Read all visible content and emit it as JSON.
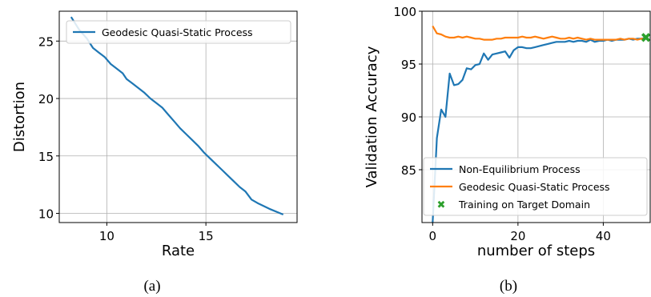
{
  "chart_data": [
    {
      "type": "line",
      "caption": "(a)",
      "xlabel": "Rate",
      "ylabel": "Distortion",
      "xlim": [
        7.6,
        19.6
      ],
      "ylim": [
        9.2,
        27.6
      ],
      "xticks": [
        10,
        15
      ],
      "yticks": [
        10,
        15,
        20,
        25
      ],
      "grid": true,
      "legend_position": "upper-right",
      "series": [
        {
          "name": "Geodesic Quasi-Static Process",
          "color": "#1f77b4",
          "x": [
            8.2,
            8.6,
            9.0,
            9.3,
            9.6,
            9.9,
            10.2,
            10.5,
            10.8,
            11.0,
            11.3,
            11.6,
            11.9,
            12.2,
            12.5,
            12.8,
            13.1,
            13.4,
            13.7,
            14.0,
            14.3,
            14.6,
            14.9,
            15.2,
            15.5,
            15.8,
            16.1,
            16.4,
            16.7,
            17.0,
            17.3,
            17.6,
            18.2,
            18.9
          ],
          "y": [
            27.1,
            26.0,
            25.2,
            24.4,
            24.0,
            23.6,
            23.0,
            22.6,
            22.2,
            21.7,
            21.3,
            20.9,
            20.5,
            20.0,
            19.6,
            19.2,
            18.6,
            18.0,
            17.4,
            16.9,
            16.4,
            15.9,
            15.3,
            14.8,
            14.3,
            13.8,
            13.3,
            12.8,
            12.3,
            11.9,
            11.2,
            10.9,
            10.4,
            9.9
          ]
        }
      ]
    },
    {
      "type": "line",
      "caption": "(b)",
      "xlabel": "number of steps",
      "ylabel": "Validation Accuracy",
      "xlim": [
        -2.5,
        51
      ],
      "ylim": [
        80,
        100
      ],
      "xticks": [
        0,
        20,
        40
      ],
      "yticks": [
        85,
        90,
        95,
        100
      ],
      "grid": true,
      "legend_position": "lower-right",
      "series": [
        {
          "name": "Non-Equilibrium Process",
          "color": "#1f77b4",
          "x": [
            0,
            1,
            2,
            3,
            4,
            5,
            6,
            7,
            8,
            9,
            10,
            11,
            12,
            13,
            14,
            15,
            16,
            17,
            18,
            19,
            20,
            21,
            22,
            23,
            24,
            25,
            26,
            27,
            28,
            29,
            30,
            31,
            32,
            33,
            34,
            35,
            36,
            37,
            38,
            39,
            40,
            41,
            42,
            43,
            44,
            45,
            46,
            47,
            48,
            49,
            50
          ],
          "y": [
            80.0,
            88.0,
            90.7,
            90.0,
            94.1,
            93.0,
            93.1,
            93.5,
            94.6,
            94.5,
            94.9,
            95.0,
            96.0,
            95.4,
            95.9,
            96.0,
            96.1,
            96.2,
            95.6,
            96.3,
            96.6,
            96.6,
            96.5,
            96.5,
            96.6,
            96.7,
            96.8,
            96.9,
            97.0,
            97.1,
            97.1,
            97.1,
            97.2,
            97.1,
            97.2,
            97.2,
            97.1,
            97.3,
            97.1,
            97.2,
            97.2,
            97.3,
            97.2,
            97.3,
            97.3,
            97.3,
            97.4,
            97.3,
            97.4,
            97.4,
            97.5
          ]
        },
        {
          "name": "Geodesic Quasi-Static Process",
          "color": "#ff7f0e",
          "x": [
            0,
            1,
            2,
            3,
            4,
            5,
            6,
            7,
            8,
            9,
            10,
            11,
            12,
            13,
            14,
            15,
            16,
            17,
            18,
            19,
            20,
            21,
            22,
            23,
            24,
            25,
            26,
            27,
            28,
            29,
            30,
            31,
            32,
            33,
            34,
            35,
            36,
            37,
            38,
            39,
            40,
            41,
            42,
            43,
            44,
            45,
            46,
            47,
            48,
            49,
            50
          ],
          "y": [
            98.6,
            97.9,
            97.8,
            97.6,
            97.5,
            97.5,
            97.6,
            97.5,
            97.6,
            97.5,
            97.4,
            97.4,
            97.3,
            97.3,
            97.3,
            97.4,
            97.4,
            97.5,
            97.5,
            97.5,
            97.5,
            97.6,
            97.5,
            97.5,
            97.6,
            97.5,
            97.4,
            97.5,
            97.6,
            97.5,
            97.4,
            97.4,
            97.5,
            97.4,
            97.5,
            97.4,
            97.3,
            97.4,
            97.3,
            97.3,
            97.3,
            97.3,
            97.3,
            97.3,
            97.4,
            97.3,
            97.4,
            97.4,
            97.3,
            97.4,
            97.4
          ]
        },
        {
          "name": "Training on Target Domain",
          "color": "#2ca02c",
          "marker": "X",
          "x": [
            50
          ],
          "y": [
            97.5
          ]
        }
      ]
    }
  ]
}
